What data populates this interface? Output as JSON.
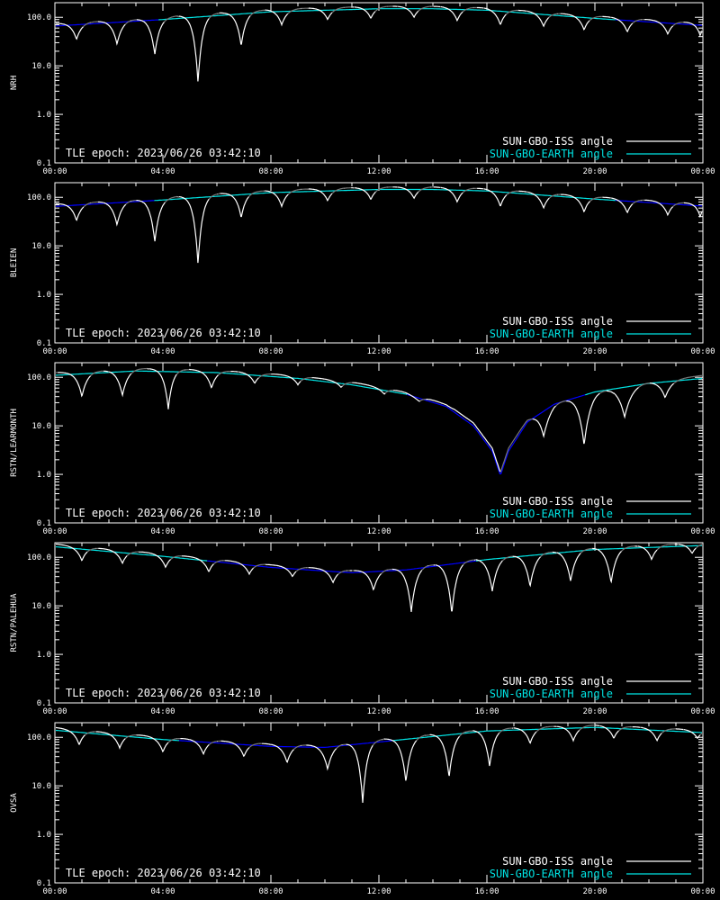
{
  "colors": {
    "background": "#000000",
    "axes": "#ffffff",
    "iss_visible": "#ffffff",
    "iss_hidden": "#777777",
    "earth_visible": "#00e5e5",
    "earth_hidden": "#0000ff"
  },
  "epoch_text": "TLE epoch: 2023/06/26 03:42:10",
  "legend": {
    "iss_label": "SUN-GBO-ISS angle",
    "earth_label": "SUN-GBO-EARTH angle"
  },
  "y_tick_labels": [
    "100.0",
    "10.0",
    "1.0",
    "0.1"
  ],
  "x_tick_labels": [
    "00:00",
    "04:00",
    "08:00",
    "12:00",
    "16:00",
    "20:00",
    "00:00"
  ],
  "chart_data": [
    {
      "type": "line",
      "ylabel": "NRH",
      "y_scale": "log",
      "ylim": [
        0.1,
        200
      ],
      "xlim_hours": [
        0,
        24
      ],
      "earth_curve": {
        "hours": [
          0,
          4,
          8,
          12,
          14,
          16,
          20,
          24
        ],
        "values": [
          66,
          90,
          130,
          150,
          150,
          140,
          95,
          68
        ]
      },
      "iss_dips": [
        {
          "hour": 0.8,
          "value": 35,
          "width": 0.45
        },
        {
          "hour": 2.3,
          "value": 28,
          "width": 0.45
        },
        {
          "hour": 3.7,
          "value": 17,
          "width": 0.4
        },
        {
          "hour": 5.3,
          "value": 4.5,
          "width": 0.35
        },
        {
          "hour": 6.9,
          "value": 26,
          "width": 0.4
        },
        {
          "hour": 8.4,
          "value": 70,
          "width": 0.45
        },
        {
          "hour": 10.1,
          "value": 90,
          "width": 0.45
        },
        {
          "hour": 11.7,
          "value": 95,
          "width": 0.45
        },
        {
          "hour": 13.3,
          "value": 100,
          "width": 0.45
        },
        {
          "hour": 14.9,
          "value": 85,
          "width": 0.45
        },
        {
          "hour": 16.5,
          "value": 70,
          "width": 0.45
        },
        {
          "hour": 18.1,
          "value": 65,
          "width": 0.45
        },
        {
          "hour": 19.6,
          "value": 55,
          "width": 0.45
        },
        {
          "hour": 21.2,
          "value": 50,
          "width": 0.45
        },
        {
          "hour": 22.7,
          "value": 45,
          "width": 0.45
        },
        {
          "hour": 23.9,
          "value": 42,
          "width": 0.35
        }
      ]
    },
    {
      "type": "line",
      "ylabel": "BLEIEN",
      "y_scale": "log",
      "ylim": [
        0.1,
        200
      ],
      "xlim_hours": [
        0,
        24
      ],
      "earth_curve": {
        "hours": [
          0,
          4,
          8,
          12,
          14,
          16,
          20,
          24
        ],
        "values": [
          65,
          88,
          125,
          145,
          145,
          135,
          92,
          66
        ]
      },
      "iss_dips": [
        {
          "hour": 0.8,
          "value": 33,
          "width": 0.45
        },
        {
          "hour": 2.3,
          "value": 27,
          "width": 0.45
        },
        {
          "hour": 3.7,
          "value": 12,
          "width": 0.4
        },
        {
          "hour": 5.3,
          "value": 4.2,
          "width": 0.35
        },
        {
          "hour": 6.9,
          "value": 38,
          "width": 0.4
        },
        {
          "hour": 8.4,
          "value": 65,
          "width": 0.45
        },
        {
          "hour": 10.1,
          "value": 85,
          "width": 0.45
        },
        {
          "hour": 11.7,
          "value": 90,
          "width": 0.45
        },
        {
          "hour": 13.3,
          "value": 95,
          "width": 0.45
        },
        {
          "hour": 14.9,
          "value": 80,
          "width": 0.45
        },
        {
          "hour": 16.5,
          "value": 65,
          "width": 0.45
        },
        {
          "hour": 18.1,
          "value": 60,
          "width": 0.45
        },
        {
          "hour": 19.6,
          "value": 50,
          "width": 0.45
        },
        {
          "hour": 21.2,
          "value": 48,
          "width": 0.45
        },
        {
          "hour": 22.7,
          "value": 43,
          "width": 0.45
        },
        {
          "hour": 23.9,
          "value": 40,
          "width": 0.35
        }
      ]
    },
    {
      "type": "line",
      "ylabel": "RSTN/LEARMONTH",
      "y_scale": "log",
      "ylim": [
        0.1,
        200
      ],
      "xlim_hours": [
        0,
        24
      ],
      "earth_curve": {
        "hours": [
          0,
          3,
          6,
          9,
          11,
          13,
          14.5,
          15.5,
          16.2,
          16.5,
          16.8,
          17.5,
          18.5,
          20,
          22,
          24
        ],
        "values": [
          110,
          135,
          125,
          95,
          70,
          45,
          25,
          10,
          3,
          0.95,
          3,
          12,
          28,
          50,
          75,
          95
        ]
      },
      "iss_dips": [
        {
          "hour": 1.0,
          "value": 40,
          "width": 0.45
        },
        {
          "hour": 2.5,
          "value": 42,
          "width": 0.45
        },
        {
          "hour": 4.2,
          "value": 22,
          "width": 0.35
        },
        {
          "hour": 5.8,
          "value": 60,
          "width": 0.45
        },
        {
          "hour": 7.4,
          "value": 75,
          "width": 0.45
        },
        {
          "hour": 9.0,
          "value": 70,
          "width": 0.45
        },
        {
          "hour": 10.6,
          "value": 62,
          "width": 0.45
        },
        {
          "hour": 12.2,
          "value": 45,
          "width": 0.45
        },
        {
          "hour": 13.5,
          "value": 32,
          "width": 0.6
        },
        {
          "hour": 15.0,
          "value": 22,
          "width": 0.75
        },
        {
          "hour": 16.5,
          "value": 14,
          "width": 0.8
        },
        {
          "hour": 18.1,
          "value": 6,
          "width": 0.5
        },
        {
          "hour": 19.6,
          "value": 4,
          "width": 0.5
        },
        {
          "hour": 21.1,
          "value": 15,
          "width": 0.6
        },
        {
          "hour": 22.6,
          "value": 38,
          "width": 0.55
        }
      ]
    },
    {
      "type": "line",
      "ylabel": "RSTN/PALEHUA",
      "y_scale": "log",
      "ylim": [
        0.1,
        200
      ],
      "xlim_hours": [
        0,
        24
      ],
      "earth_curve": {
        "hours": [
          0,
          4,
          8,
          11,
          13,
          16,
          20,
          24
        ],
        "values": [
          165,
          105,
          62,
          48,
          55,
          90,
          145,
          175
        ]
      },
      "iss_dips": [
        {
          "hour": 1.0,
          "value": 85,
          "width": 0.45
        },
        {
          "hour": 2.5,
          "value": 75,
          "width": 0.45
        },
        {
          "hour": 4.1,
          "value": 62,
          "width": 0.45
        },
        {
          "hour": 5.7,
          "value": 50,
          "width": 0.45
        },
        {
          "hour": 7.2,
          "value": 45,
          "width": 0.45
        },
        {
          "hour": 8.8,
          "value": 40,
          "width": 0.45
        },
        {
          "hour": 10.3,
          "value": 30,
          "width": 0.45
        },
        {
          "hour": 11.8,
          "value": 21,
          "width": 0.45
        },
        {
          "hour": 13.2,
          "value": 7.5,
          "width": 0.4
        },
        {
          "hour": 14.7,
          "value": 7,
          "width": 0.4
        },
        {
          "hour": 16.2,
          "value": 20,
          "width": 0.45
        },
        {
          "hour": 17.6,
          "value": 25,
          "width": 0.45
        },
        {
          "hour": 19.1,
          "value": 32,
          "width": 0.45
        },
        {
          "hour": 20.6,
          "value": 30,
          "width": 0.45
        },
        {
          "hour": 22.1,
          "value": 90,
          "width": 0.45
        },
        {
          "hour": 23.6,
          "value": 120,
          "width": 0.45
        }
      ]
    },
    {
      "type": "line",
      "ylabel": "OVSA",
      "y_scale": "log",
      "ylim": [
        0.1,
        200
      ],
      "xlim_hours": [
        0,
        24
      ],
      "earth_curve": {
        "hours": [
          0,
          4,
          8,
          10,
          12,
          16,
          20,
          24
        ],
        "values": [
          140,
          90,
          65,
          62,
          80,
          135,
          160,
          125
        ]
      },
      "iss_dips": [
        {
          "hour": 0.9,
          "value": 70,
          "width": 0.45
        },
        {
          "hour": 2.4,
          "value": 60,
          "width": 0.45
        },
        {
          "hour": 4.0,
          "value": 50,
          "width": 0.45
        },
        {
          "hour": 5.5,
          "value": 45,
          "width": 0.45
        },
        {
          "hour": 7.0,
          "value": 40,
          "width": 0.45
        },
        {
          "hour": 8.6,
          "value": 30,
          "width": 0.45
        },
        {
          "hour": 10.1,
          "value": 22,
          "width": 0.45
        },
        {
          "hour": 11.4,
          "value": 4.5,
          "width": 0.35
        },
        {
          "hour": 13.0,
          "value": 12,
          "width": 0.4
        },
        {
          "hour": 14.6,
          "value": 15,
          "width": 0.4
        },
        {
          "hour": 16.1,
          "value": 25,
          "width": 0.4
        },
        {
          "hour": 17.6,
          "value": 75,
          "width": 0.45
        },
        {
          "hour": 19.2,
          "value": 85,
          "width": 0.45
        },
        {
          "hour": 20.7,
          "value": 95,
          "width": 0.45
        },
        {
          "hour": 22.3,
          "value": 85,
          "width": 0.45
        },
        {
          "hour": 23.8,
          "value": 95,
          "width": 0.45
        }
      ]
    }
  ]
}
